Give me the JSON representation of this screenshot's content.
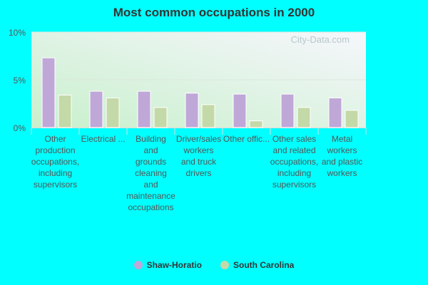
{
  "chart_data": {
    "type": "bar",
    "title": "Most common occupations in 2000",
    "categories": [
      "Other production occupations, including supervisors",
      "Electrical ...",
      "Building and grounds cleaning and maintenance occupations",
      "Driver/sales workers and truck drivers",
      "Other offic...",
      "Other sales and related occupations, including supervisors",
      "Metal workers and plastic workers"
    ],
    "category_lines": [
      [
        "Other",
        "production",
        "occupations,",
        "including",
        "supervisors"
      ],
      [
        "Electrical ..."
      ],
      [
        "Building",
        "and",
        "grounds",
        "cleaning",
        "and",
        "maintenance",
        "occupations"
      ],
      [
        "Driver/sales",
        "workers",
        "and truck",
        "drivers"
      ],
      [
        "Other offic..."
      ],
      [
        "Other sales",
        "and related",
        "occupations,",
        "including",
        "supervisors"
      ],
      [
        "Metal",
        "workers",
        "and plastic",
        "workers"
      ]
    ],
    "series": [
      {
        "name": "Shaw-Horatio",
        "color": "#bfa8d8",
        "values": [
          7.3,
          3.8,
          3.8,
          3.6,
          3.5,
          3.5,
          3.1
        ]
      },
      {
        "name": "South Carolina",
        "color": "#c4d9a8",
        "values": [
          3.4,
          3.1,
          2.1,
          2.4,
          0.7,
          2.1,
          1.8
        ]
      }
    ],
    "ylim": [
      0,
      10
    ],
    "yticks": [
      "0%",
      "5%",
      "10%"
    ],
    "ytick_values": [
      0,
      5,
      10
    ],
    "grid": true,
    "legend": "bottom",
    "watermark": "City-Data.com"
  }
}
